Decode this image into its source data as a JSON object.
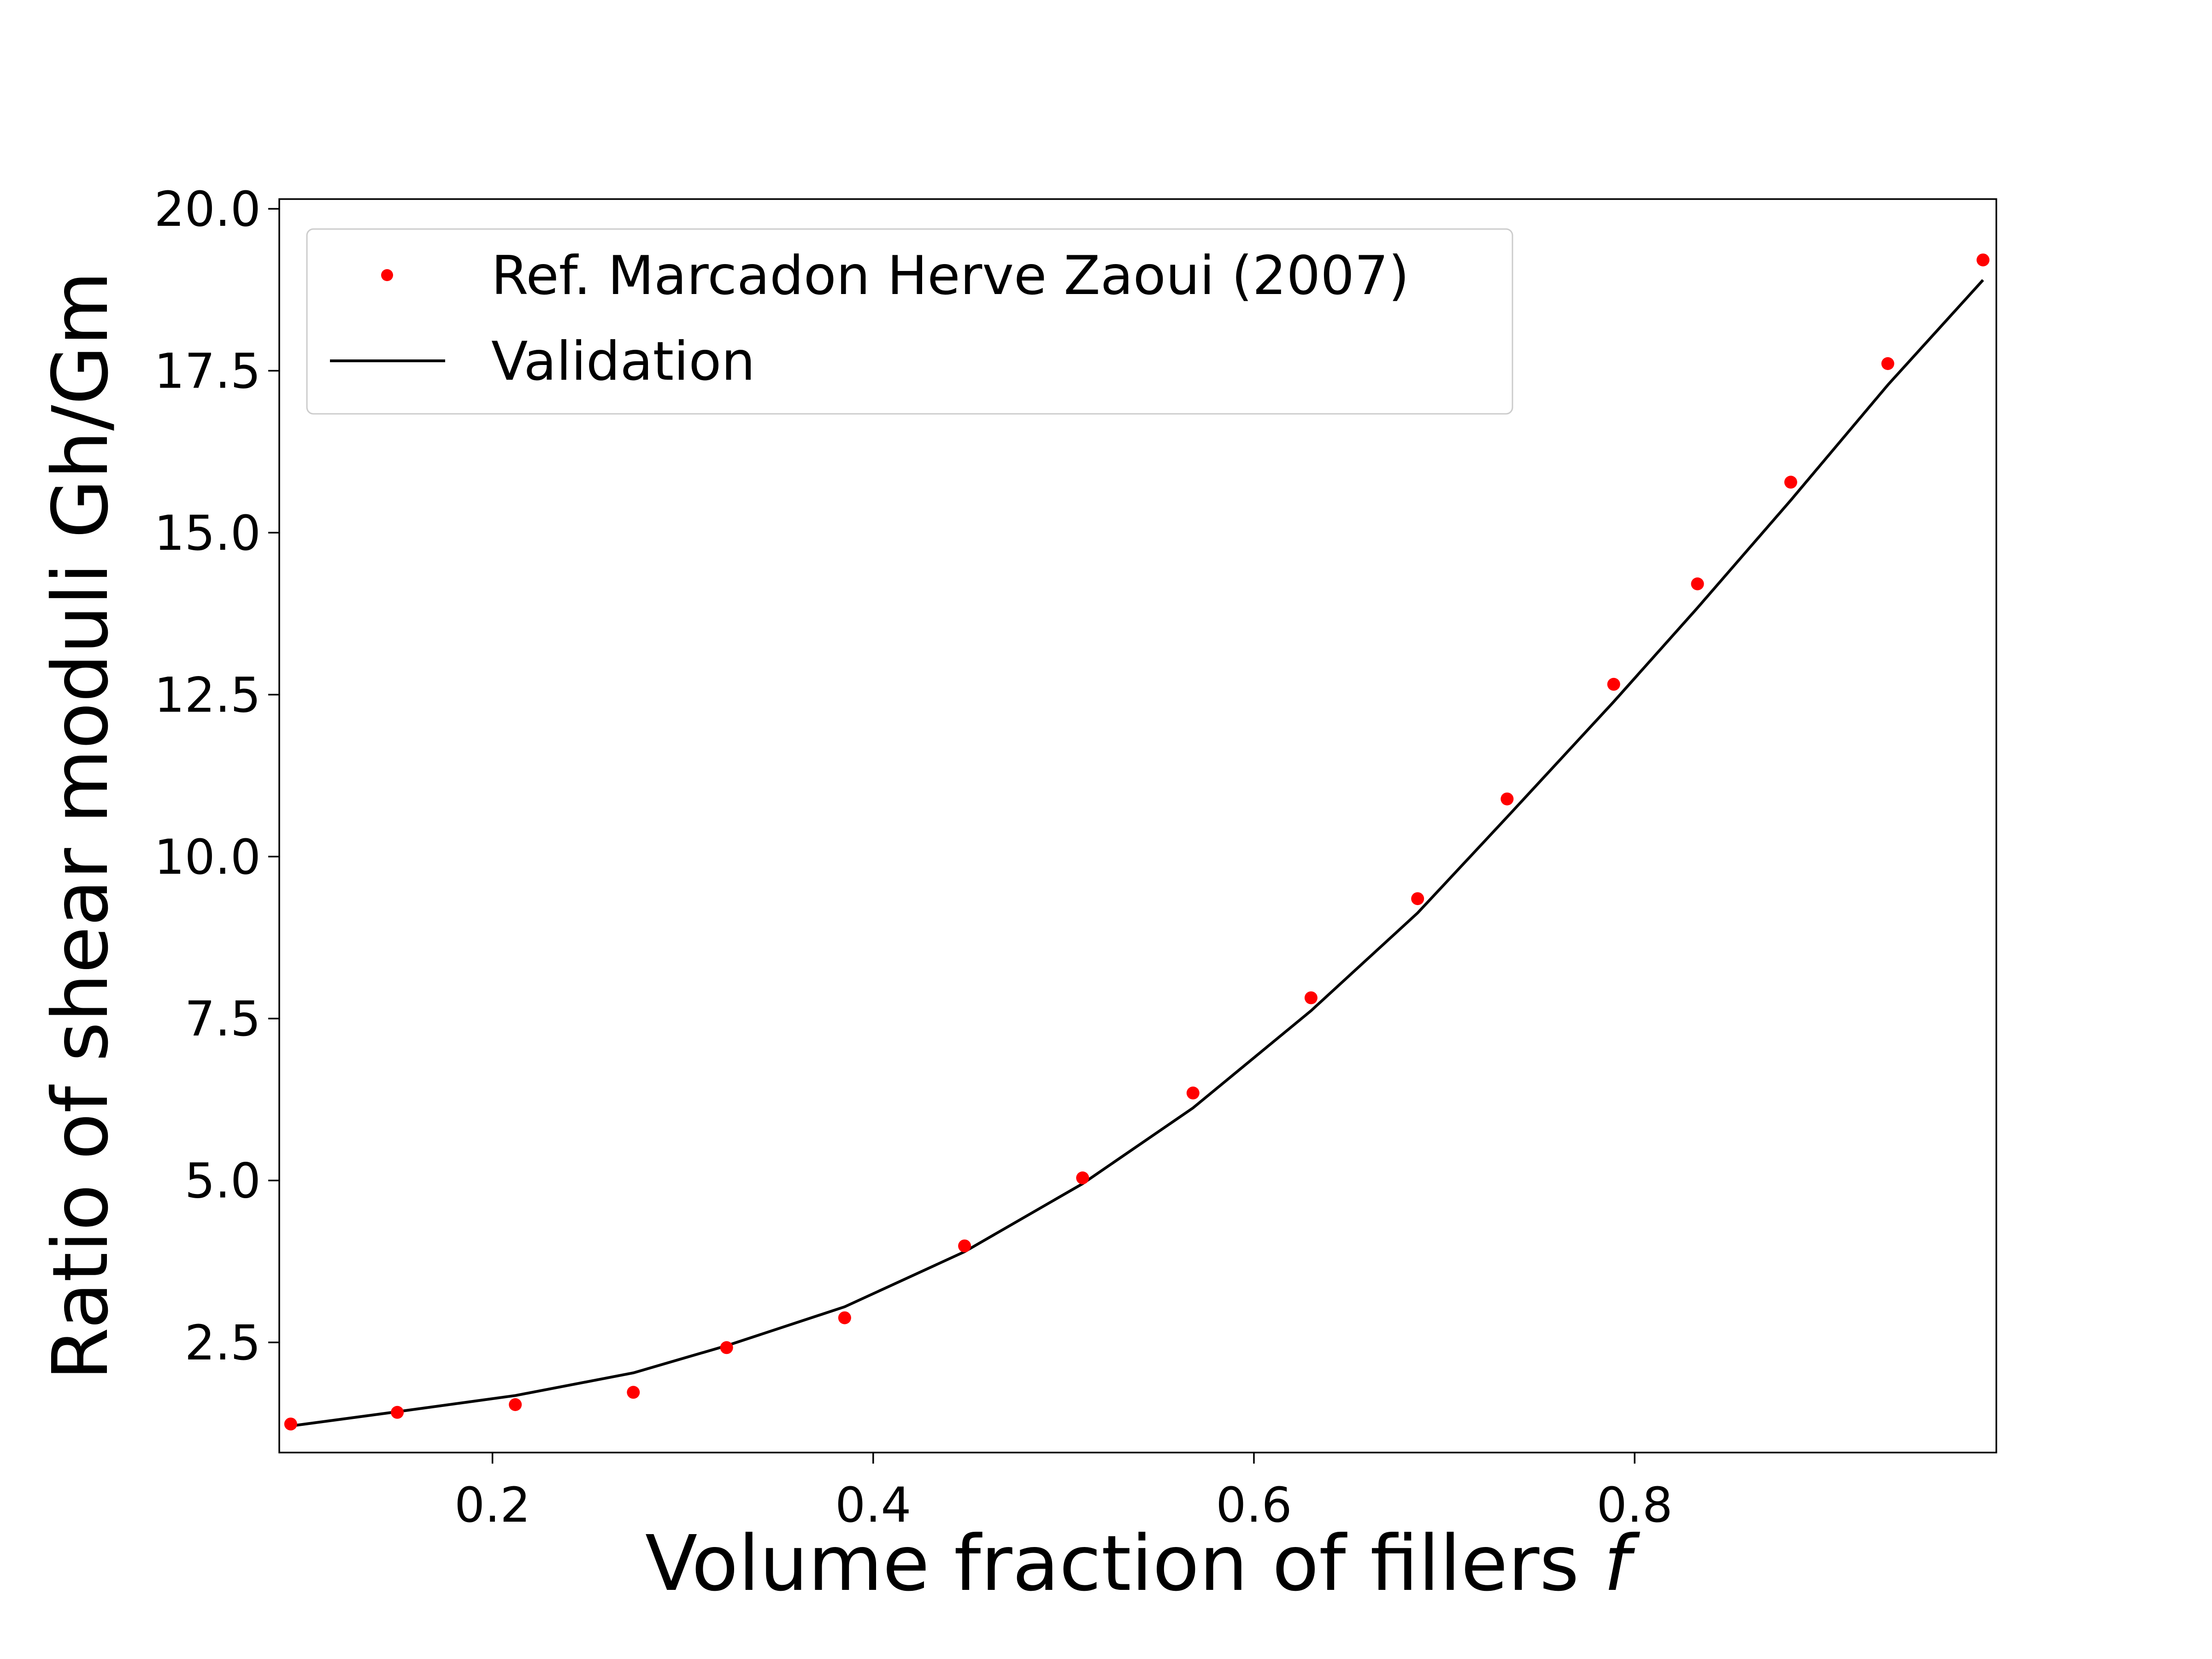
{
  "chart_data": {
    "type": "line",
    "title": "",
    "xlabel": "Volume fraction of fillers",
    "xlabel_symbol": "f",
    "ylabel": "Ratio of shear moduli Gh/Gm",
    "xlim": [
      0.088,
      0.99
    ],
    "ylim": [
      0.8,
      20.15
    ],
    "xticks": [
      0.2,
      0.4,
      0.6,
      0.8
    ],
    "xtick_labels": [
      "0.2",
      "0.4",
      "0.6",
      "0.8"
    ],
    "yticks": [
      2.5,
      5.0,
      7.5,
      10.0,
      12.5,
      15.0,
      17.5,
      20.0
    ],
    "ytick_labels": [
      "2.5",
      "5.0",
      "7.5",
      "10.0",
      "12.5",
      "15.0",
      "17.5",
      "20.0"
    ],
    "grid": false,
    "legend_position": "top-left",
    "series": [
      {
        "name": "Ref. Marcadon Herve Zaoui (2007)",
        "kind": "scatter",
        "color": "#ff0000",
        "x": [
          0.094,
          0.15,
          0.212,
          0.274,
          0.323,
          0.385,
          0.448,
          0.51,
          0.568,
          0.63,
          0.686,
          0.733,
          0.789,
          0.833,
          0.882,
          0.933,
          0.983
        ],
        "y": [
          1.24,
          1.42,
          1.54,
          1.73,
          2.42,
          2.88,
          3.99,
          5.04,
          6.35,
          7.82,
          9.35,
          10.89,
          12.66,
          14.21,
          15.78,
          17.61,
          19.21
        ]
      },
      {
        "name": "Validation",
        "kind": "line",
        "color": "#000000",
        "x": [
          0.094,
          0.15,
          0.212,
          0.274,
          0.323,
          0.385,
          0.448,
          0.51,
          0.568,
          0.63,
          0.686,
          0.733,
          0.789,
          0.833,
          0.882,
          0.933,
          0.983
        ],
        "y": [
          1.21,
          1.43,
          1.68,
          2.03,
          2.45,
          3.05,
          3.9,
          4.95,
          6.12,
          7.62,
          9.13,
          10.61,
          12.39,
          13.84,
          15.5,
          17.28,
          18.9
        ]
      }
    ]
  }
}
